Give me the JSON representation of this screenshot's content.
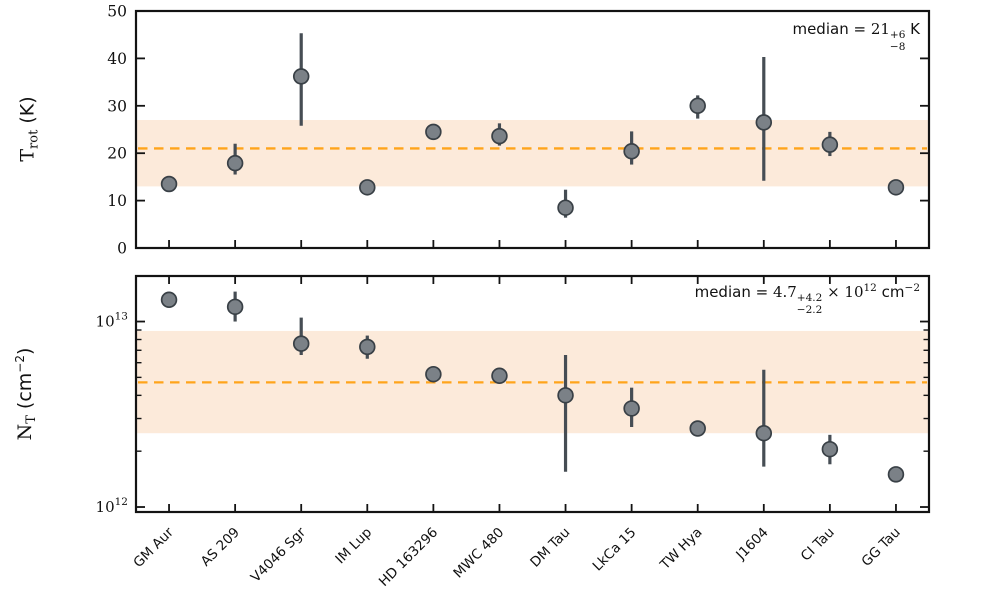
{
  "colors": {
    "background": "#ffffff",
    "accent_orange": "#FFA41B",
    "band_fill": "#FCEADA",
    "marker_fill": "#7B8187",
    "marker_edge": "#394046",
    "errorbar": "#464D54",
    "axis": "#131313",
    "text": "#111111"
  },
  "ylabels": {
    "top": {
      "main": "T",
      "sub": "rot",
      "rest": " (K)"
    },
    "bottom": {
      "main": "N",
      "sub": "T",
      "rest_pre": " (cm",
      "exp": "−2",
      "rest_post": ")"
    }
  },
  "annotations": {
    "top": {
      "prefix": "median = ",
      "value": "21",
      "sup": "+6",
      "sub": "−8",
      "suffix": " K"
    },
    "bottom": {
      "prefix": "median = ",
      "value": "4.7",
      "sup": "+4.2",
      "sub": "−2.2",
      "times": " × 10",
      "exp": "12",
      "unit": " cm",
      "unit_exp": "−2"
    }
  },
  "chart_data": [
    {
      "type": "scatter",
      "panel": "rotational-temperature",
      "ylabel": "T_rot (K)",
      "yscale": "linear",
      "ylim": [
        0,
        50
      ],
      "yticks": [
        0,
        10,
        20,
        30,
        40,
        50
      ],
      "grid": false,
      "categories": [
        "GM Aur",
        "AS 209",
        "V4046 Sgr",
        "IM Lup",
        "HD 163296",
        "MWC 480",
        "DM Tau",
        "LkCa 15",
        "TW Hya",
        "J1604",
        "CI Tau",
        "GG Tau"
      ],
      "values": [
        13.5,
        17.9,
        36.2,
        12.8,
        24.5,
        23.6,
        8.5,
        20.4,
        30.0,
        26.5,
        21.8,
        12.8
      ],
      "err_lo": [
        12.9,
        15.5,
        25.8,
        12.2,
        23.8,
        21.6,
        6.4,
        17.6,
        27.3,
        14.2,
        19.4,
        12.3
      ],
      "err_hi": [
        14.4,
        22.0,
        45.3,
        13.5,
        25.3,
        26.3,
        12.3,
        24.6,
        32.2,
        40.3,
        24.5,
        13.4
      ],
      "median": 21,
      "median_err": {
        "plus": 6,
        "minus": 8
      },
      "band": [
        13,
        27
      ],
      "annotation_text": "median = 21 +6/-8 K"
    },
    {
      "type": "scatter",
      "panel": "column-density",
      "ylabel": "N_T (cm^-2)",
      "yscale": "log",
      "ylim": [
        940000000000.0,
        17600000000000.0
      ],
      "yticks": [
        1000000000000.0,
        10000000000000.0
      ],
      "grid": false,
      "categories": [
        "GM Aur",
        "AS 209",
        "V4046 Sgr",
        "IM Lup",
        "HD 163296",
        "MWC 480",
        "DM Tau",
        "LkCa 15",
        "TW Hya",
        "J1604",
        "CI Tau",
        "GG Tau"
      ],
      "values": [
        13100000000000.0,
        12000000000000.0,
        7600000000000.0,
        7300000000000.0,
        5200000000000.0,
        5100000000000.0,
        4000000000000.0,
        3400000000000.0,
        2650000000000.0,
        2500000000000.0,
        2050000000000.0,
        1500000000000.0
      ],
      "err_lo": [
        12200000000000.0,
        10000000000000.0,
        6600000000000.0,
        6300000000000.0,
        4900000000000.0,
        4800000000000.0,
        1550000000000.0,
        2700000000000.0,
        2450000000000.0,
        1650000000000.0,
        1700000000000.0,
        1400000000000.0
      ],
      "err_hi": [
        14200000000000.0,
        14500000000000.0,
        10500000000000.0,
        8400000000000.0,
        5500000000000.0,
        5500000000000.0,
        6600000000000.0,
        4400000000000.0,
        2900000000000.0,
        5500000000000.0,
        2450000000000.0,
        1620000000000.0
      ],
      "median": 4700000000000.0,
      "median_err": {
        "plus": 4200000000000.0,
        "minus": 2200000000000.0
      },
      "band": [
        2500000000000.0,
        8900000000000.0
      ],
      "annotation_text": "median = 4.7 +4.2/-2.2 x 10^12 cm^-2"
    }
  ]
}
